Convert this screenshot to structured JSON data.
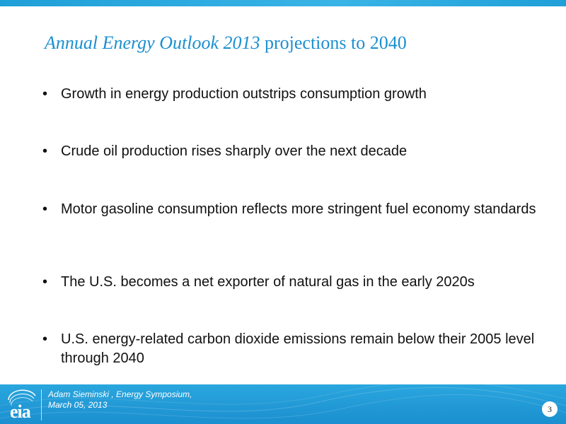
{
  "title": {
    "italic": "Annual Energy Outlook 2013",
    "rest": " projections to 2040"
  },
  "bullets": [
    "Growth in energy production outstrips consumption growth",
    "Crude oil production rises sharply over the next decade",
    "Motor gasoline consumption reflects more stringent fuel economy standards",
    "The U.S. becomes a net exporter of natural gas in the early 2020s",
    "U.S. energy-related carbon dioxide emissions remain below their 2005 level through 2040"
  ],
  "bullet_symbol": "•",
  "footer": {
    "logo_text": "eia",
    "presenter_line1": "Adam Sieminski , Energy Symposium,",
    "presenter_line2": "March 05, 2013"
  },
  "page_number": "3",
  "colors": {
    "accent": "#1b8fd0",
    "footer": "#2aa6de"
  }
}
